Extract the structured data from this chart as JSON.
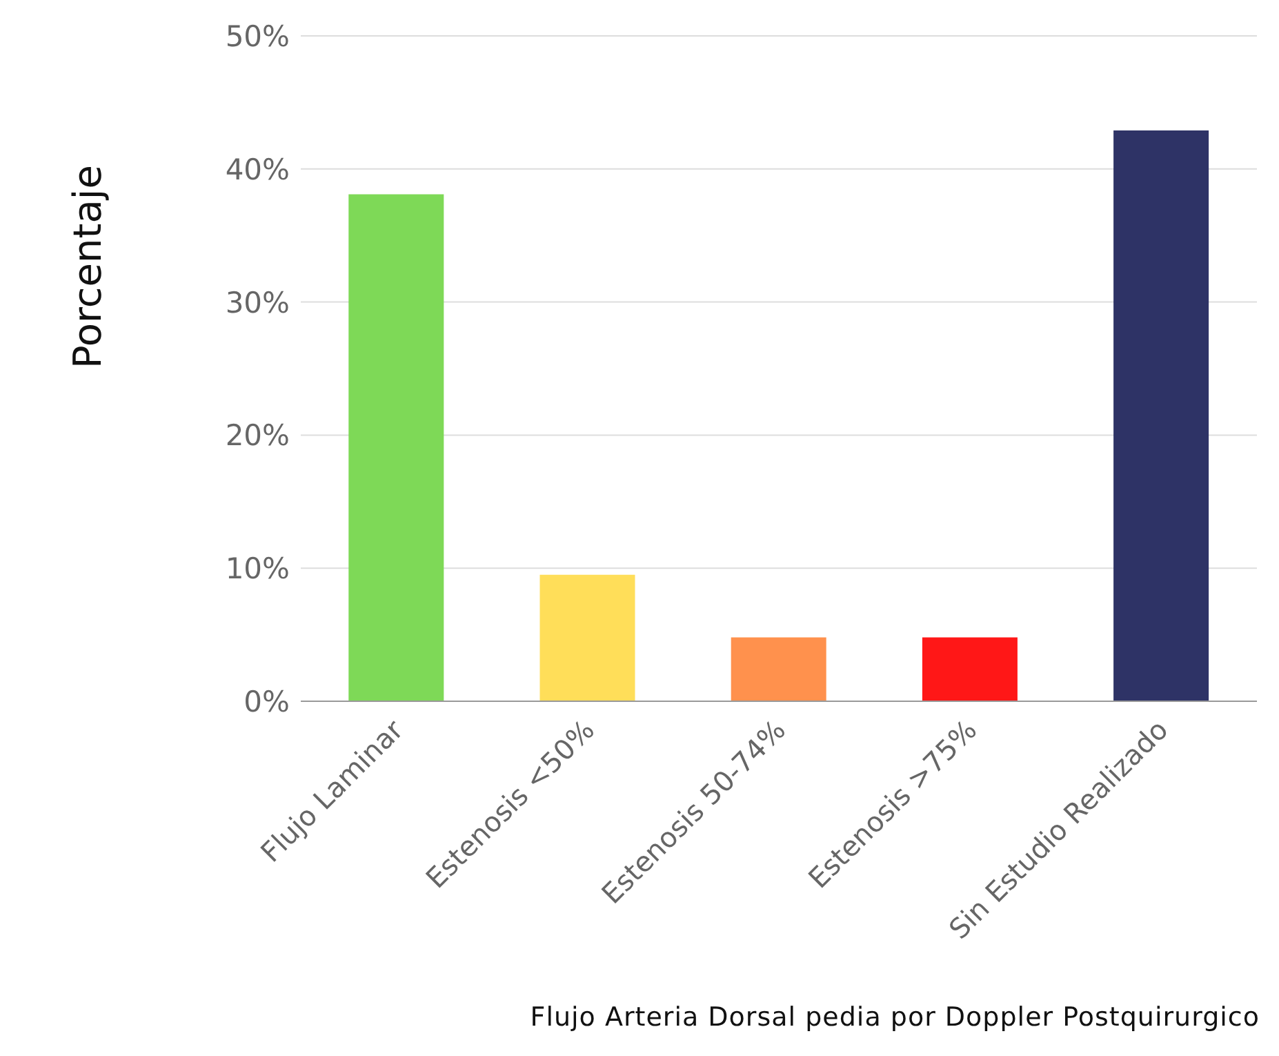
{
  "chart_data": {
    "type": "bar",
    "xlabel": "Flujo Arteria Dorsal pedia por Doppler Postquirurgico",
    "ylabel": "Porcentaje",
    "categories": [
      "Flujo Laminar",
      "Estenosis <50%",
      "Estenosis 50-74%",
      "Estenosis >75%",
      "Sin Estudio Realizado"
    ],
    "values": [
      38.1,
      9.5,
      4.8,
      4.8,
      42.9
    ],
    "colors": [
      "#7ed957",
      "#ffde59",
      "#ff914d",
      "#ff1717",
      "#2e3366"
    ],
    "ylim": [
      0,
      50
    ],
    "yticks": [
      {
        "value": 0,
        "label": "0%"
      },
      {
        "value": 10,
        "label": "10%"
      },
      {
        "value": 20,
        "label": "20%"
      },
      {
        "value": 30,
        "label": "30%"
      },
      {
        "value": 40,
        "label": "40%"
      },
      {
        "value": 50,
        "label": "50%"
      }
    ],
    "grid": "y"
  }
}
